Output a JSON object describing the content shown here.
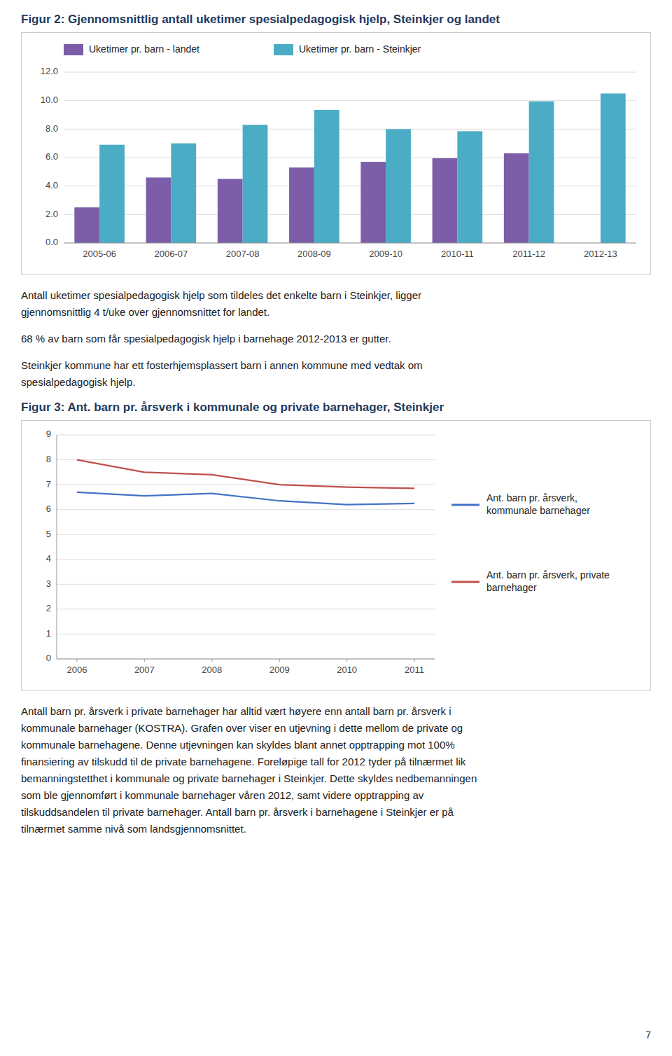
{
  "chart_data": [
    {
      "type": "bar",
      "title": "Figur 2: Gjennomsnittlig antall uketimer spesialpedagogisk hjelp, Steinkjer og landet",
      "categories": [
        "2005-06",
        "2006-07",
        "2007-08",
        "2008-09",
        "2009-10",
        "2010-11",
        "2011-12",
        "2012-13"
      ],
      "series": [
        {
          "name": "Uketimer pr. barn - landet",
          "color": "#7B5EA7",
          "values": [
            2.5,
            4.6,
            4.5,
            5.3,
            5.7,
            5.95,
            6.3,
            0
          ]
        },
        {
          "name": "Uketimer pr. barn - Steinkjer",
          "color": "#4BACC6",
          "values": [
            6.9,
            7.0,
            8.3,
            9.35,
            8.0,
            7.85,
            9.95,
            10.5
          ]
        }
      ],
      "ylim": [
        0,
        12
      ],
      "yticks": [
        {
          "value": 0,
          "label": "0.0"
        },
        {
          "value": 2,
          "label": "2.0"
        },
        {
          "value": 4,
          "label": "4.0"
        },
        {
          "value": 6,
          "label": "6.0"
        },
        {
          "value": 8,
          "label": "8.0"
        },
        {
          "value": 10,
          "label": "10.0"
        },
        {
          "value": 12,
          "label": "12.0"
        }
      ],
      "grid": true,
      "legend": "top"
    },
    {
      "type": "line",
      "title": "Figur 3: Ant. barn pr. årsverk i kommunale og private barnehager, Steinkjer",
      "x": [
        2006,
        2007,
        2008,
        2009,
        2010,
        2011
      ],
      "series": [
        {
          "name": "Ant. barn pr. årsverk,\nkommunale barnehager",
          "color": "#4472C4",
          "values": [
            6.7,
            6.55,
            6.65,
            6.35,
            6.2,
            6.25
          ]
        },
        {
          "name": "Ant. barn pr. årsverk, private\nbarnehager",
          "color": "#C0504D",
          "values": [
            8.0,
            7.5,
            7.4,
            7.0,
            6.9,
            6.85
          ]
        }
      ],
      "xlim": [
        2005.7,
        2011.3
      ],
      "xticks": [
        2006,
        2007,
        2008,
        2009,
        2010,
        2011
      ],
      "ylim": [
        0,
        9
      ],
      "yticks": [
        0,
        1,
        2,
        3,
        4,
        5,
        6,
        7,
        8,
        9
      ],
      "grid": true,
      "legend": "right"
    }
  ],
  "texts": [
    "Antall uketimer spesialpedagogisk hjelp som tildeles det enkelte barn i Steinkjer, ligger\ngjennomsnittlig 4 t/uke over gjennomsnittet for landet.",
    "68 % av barn som får spesialpedagogisk hjelp i barnehage 2012-2013 er gutter.",
    "Steinkjer kommune har ett fosterhjemsplassert barn i annen kommune med vedtak om\nspesialpedagogisk hjelp.",
    "Antall barn pr. årsverk i private barnehager har alltid vært høyere enn antall barn pr. årsverk i\nkommunale barnehager (KOSTRA). Grafen over viser en utjevning i dette mellom de private og\nkommunale barnehagene. Denne utjevningen kan skyldes blant annet opptrapping mot 100%\nfinansiering av tilskudd til de private barnehagene. Foreløpige tall for 2012 tyder på tilnærmet lik\nbemanningstetthet i kommunale og private barnehager i Steinkjer. Dette skyldes nedbemanningen\nsom ble gjennomført i kommunale barnehager våren 2012, samt videre opptrapping av\ntilskuddsandelen til private barnehager. Antall barn pr. årsverk i barnehagene i Steinkjer er på\ntilnærmet samme nivå som landsgjennomsnittet."
  ],
  "page_number": "7"
}
